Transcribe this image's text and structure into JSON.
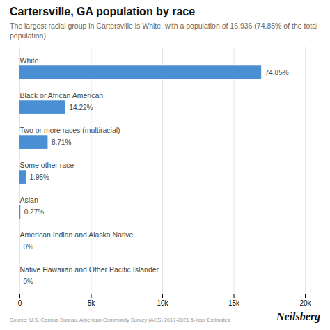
{
  "chart_data": {
    "type": "bar",
    "orientation": "horizontal",
    "title": "Cartersville, GA population by race",
    "subtitle": "The largest racial group in Cartersville is White, with a population of 16,936 (74.85% of the total population)",
    "categories": [
      "White",
      "Black or African American",
      "Two or more races (multiracial)",
      "Some other race",
      "Asian",
      "American Indian and Alaska Native",
      "Native Hawaiian and Other Pacific Islander"
    ],
    "values": [
      16936,
      3220,
      1972,
      441,
      61,
      0,
      0
    ],
    "percentage_labels": [
      "74.85%",
      "14.22%",
      "8.71%",
      "1.95%",
      "0.27%",
      "0%",
      "0%"
    ],
    "color": "#4A8FD4",
    "xlim": [
      0,
      20000
    ],
    "xticks": [
      0,
      {
        "value": 5000,
        "label": "5k"
      },
      {
        "value": 10000,
        "label": "10k"
      },
      {
        "value": 15000,
        "label": "15k"
      },
      {
        "value": 20000,
        "label": "20k"
      }
    ],
    "grid": true,
    "annotations": [
      "Source: U.S. Census Bureau, American Community Survey (ACS) 2017-2021 5-Year Estimates",
      "Neilsberg"
    ]
  }
}
